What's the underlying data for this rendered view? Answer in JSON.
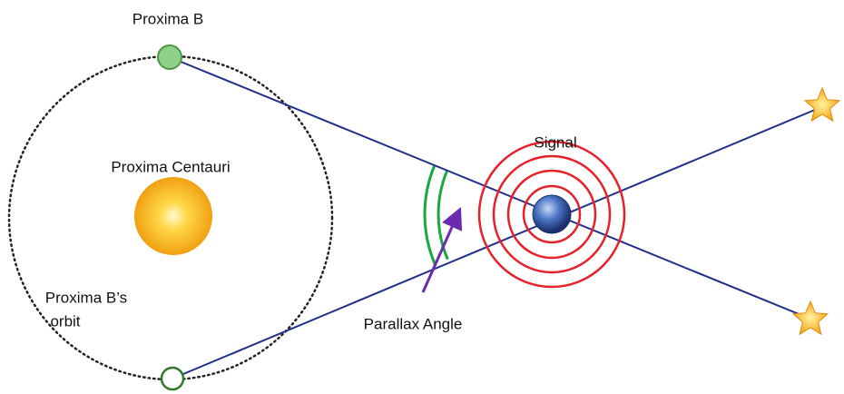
{
  "labels": {
    "proxima_b": "Proxima B",
    "proxima_centauri": "Proxima Centauri",
    "orbit_line1": "Proxima B’s",
    "orbit_line2": "orbit",
    "signal": "Signal",
    "parallax_angle": "Parallax Angle"
  }
}
